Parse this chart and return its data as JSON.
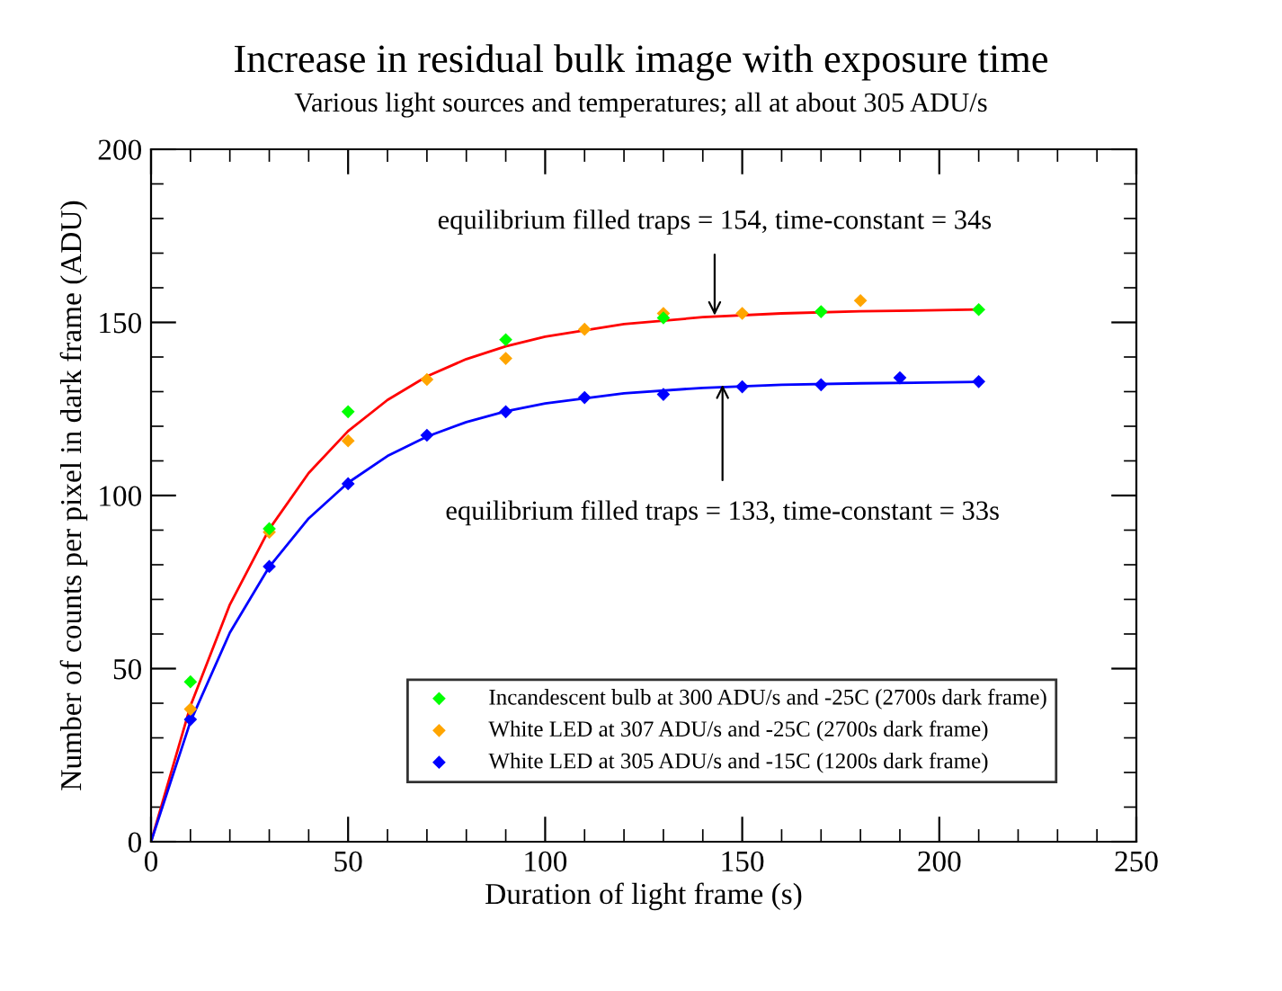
{
  "chart_data": {
    "type": "scatter",
    "title": "Increase in residual bulk image with exposure time",
    "subtitle": "Various light sources and temperatures; all at about 305 ADU/s",
    "xlabel": "Duration of light frame (s)",
    "ylabel": "Number of counts per pixel in dark frame (ADU)",
    "xlim": [
      0,
      250
    ],
    "ylim": [
      0,
      200
    ],
    "xticks": [
      0,
      50,
      100,
      150,
      200,
      250
    ],
    "yticks": [
      0,
      50,
      100,
      150,
      200
    ],
    "grid": false,
    "legend": "bottom right",
    "marker": "diamond",
    "series": [
      {
        "name": "Incandescent bulb at 300 ADU/s and -25C (2700s dark frame)",
        "color": "#00ff00",
        "x": [
          10,
          30,
          50,
          90,
          130,
          170,
          210
        ],
        "values": [
          46.2,
          90.4,
          124.2,
          145,
          151.3,
          153.1,
          153.7
        ]
      },
      {
        "name": "White LED at 307 ADU/s and -25C (2700s dark frame)",
        "color": "#ffa500",
        "x": [
          10,
          30,
          50,
          70,
          90,
          110,
          130,
          150,
          180
        ],
        "values": [
          38.3,
          89.4,
          115.8,
          133.5,
          139.6,
          148,
          152.6,
          152.6,
          156.3
        ]
      },
      {
        "name": "White LED at 305 ADU/s and -15C (1200s dark frame)",
        "color": "#0000ff",
        "x": [
          10,
          30,
          50,
          70,
          90,
          110,
          130,
          150,
          170,
          190,
          210
        ],
        "values": [
          35.3,
          79.5,
          103.4,
          117.4,
          124.2,
          128.3,
          129.2,
          131.4,
          132,
          134,
          132.9
        ]
      },
      {
        "type": "line",
        "color": "#ff0000",
        "marker": "none",
        "x": [
          0,
          10,
          20,
          30,
          40,
          50,
          60,
          70,
          80,
          90,
          100,
          120,
          140,
          160,
          180,
          210
        ],
        "values": [
          0,
          39.2,
          68.5,
          90.3,
          106.5,
          118.6,
          127.6,
          134.4,
          139.4,
          143.1,
          145.9,
          149.5,
          151.5,
          152.6,
          153.2,
          153.7
        ]
      },
      {
        "type": "line",
        "color": "#0000ff",
        "marker": "none",
        "x": [
          0,
          10,
          20,
          30,
          40,
          50,
          60,
          70,
          80,
          90,
          100,
          120,
          140,
          160,
          180,
          210
        ],
        "values": [
          0,
          34.7,
          60.4,
          79.4,
          93.4,
          103.7,
          111.4,
          117,
          121.2,
          124.3,
          126.6,
          129.5,
          131.1,
          132,
          132.4,
          132.8
        ]
      }
    ],
    "annotations": [
      {
        "text": "equilibrium filled traps = 154, time-constant = 34s",
        "x": 143,
        "y": 152
      },
      {
        "text": "equilibrium filled traps = 133, time-constant = 33s",
        "x": 145,
        "y": 132
      }
    ]
  }
}
